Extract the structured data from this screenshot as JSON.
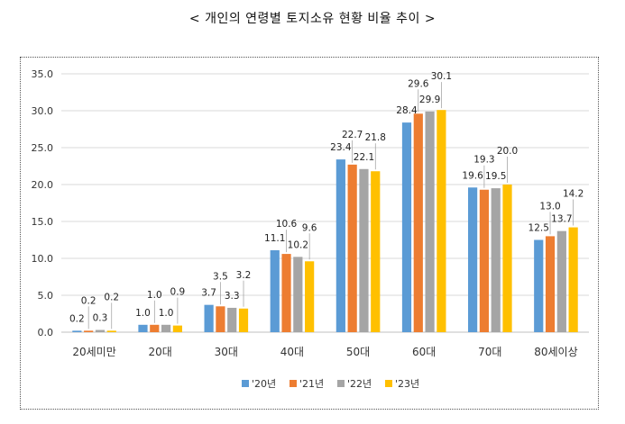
{
  "title": "< 개인의 연령별 토지소유 현황 비율 추이 >",
  "chart_data": {
    "type": "bar",
    "title": "< 개인의 연령별 토지소유 현황 비율 추이 >",
    "xlabel": "",
    "ylabel": "",
    "ylim": [
      0,
      35
    ],
    "yticks": [
      "0.0",
      "5.0",
      "10.0",
      "15.0",
      "20.0",
      "25.0",
      "30.0",
      "35.0"
    ],
    "grid": true,
    "legend_position": "bottom",
    "categories": [
      "20세미만",
      "20대",
      "30대",
      "40대",
      "50대",
      "60대",
      "70대",
      "80세이상"
    ],
    "series": [
      {
        "name": "'20년",
        "color": "#5B9BD5",
        "values": [
          0.2,
          1.0,
          3.7,
          11.1,
          23.4,
          28.4,
          19.6,
          12.5
        ],
        "labels": [
          "0.2",
          "1.0",
          "3.7",
          "11.1",
          "23.4",
          "28.4",
          "19.6",
          "12.5"
        ]
      },
      {
        "name": "'21년",
        "color": "#ED7D31",
        "values": [
          0.2,
          1.0,
          3.5,
          10.6,
          22.7,
          29.6,
          19.3,
          13.0
        ],
        "labels": [
          "0.2",
          "1.0",
          "3.5",
          "10.6",
          "22.7",
          "29.6",
          "19.3",
          "13.0"
        ]
      },
      {
        "name": "'22년",
        "color": "#A5A5A5",
        "values": [
          0.3,
          1.0,
          3.3,
          10.2,
          22.1,
          29.9,
          19.5,
          13.7
        ],
        "labels": [
          "0.3",
          "1.0",
          "3.3",
          "10.2",
          "22.1",
          "29.9",
          "19.5",
          "13.7"
        ]
      },
      {
        "name": "'23년",
        "color": "#FFC000",
        "values": [
          0.2,
          0.9,
          3.2,
          9.6,
          21.8,
          30.1,
          20.0,
          14.2
        ],
        "labels": [
          "0.2",
          "0.9",
          "3.2",
          "9.6",
          "21.8",
          "30.1",
          "20.0",
          "14.2"
        ]
      }
    ]
  }
}
